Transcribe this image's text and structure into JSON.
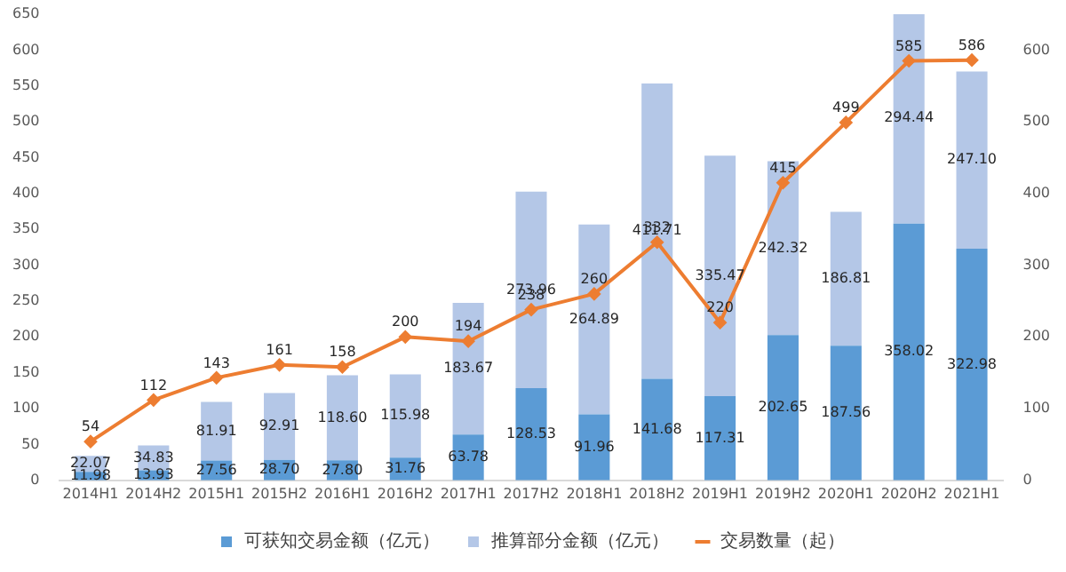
{
  "chart_data": {
    "type": "bar",
    "stacked": true,
    "categories": [
      "2014H1",
      "2014H2",
      "2015H1",
      "2015H2",
      "2016H1",
      "2016H2",
      "2017H1",
      "2017H2",
      "2018H1",
      "2018H2",
      "2019H1",
      "2019H2",
      "2020H1",
      "2020H2",
      "2021H1"
    ],
    "series": [
      {
        "name": "可获知交易金额（亿元）",
        "color": "#5b9bd5",
        "values": [
          11.98,
          13.93,
          27.56,
          28.7,
          27.8,
          31.76,
          63.78,
          128.53,
          91.96,
          141.68,
          117.31,
          202.65,
          187.56,
          358.02,
          322.98
        ],
        "value_labels": [
          "11.98",
          "13.93",
          "27.56",
          "28.70",
          "27.80",
          "31.76",
          "63.78",
          "128.53",
          "91.96",
          "141.68",
          "117.31",
          "202.65",
          "187.56",
          "358.02",
          "322.98"
        ]
      },
      {
        "name": "推算部分金额（亿元）",
        "color": "#b4c7e7",
        "values": [
          22.07,
          34.83,
          81.91,
          92.91,
          118.6,
          115.98,
          183.67,
          273.96,
          264.89,
          411.71,
          335.47,
          242.32,
          186.81,
          294.44,
          247.1
        ],
        "value_labels": [
          "22.07",
          "34.83",
          "81.91",
          "92.91",
          "118.60",
          "115.98",
          "183.67",
          "273.96",
          "264.89",
          "411.71",
          "335.47",
          "242.32",
          "186.81",
          "294.44",
          "247.10"
        ]
      },
      {
        "name": "交易数量（起）",
        "type": "line",
        "axis": "y2",
        "color": "#ed7d31",
        "values": [
          54,
          112,
          143,
          161,
          158,
          200,
          194,
          238,
          260,
          332,
          220,
          415,
          499,
          585,
          586
        ],
        "value_labels": [
          "54",
          "112",
          "143",
          "161",
          "158",
          "200",
          "194",
          "238",
          "260",
          "332",
          "220",
          "415",
          "499",
          "585",
          "586"
        ]
      }
    ],
    "ylim": [
      0,
      650
    ],
    "yticks": [
      0,
      50,
      100,
      150,
      200,
      250,
      300,
      350,
      400,
      450,
      500,
      550,
      600,
      650
    ],
    "y2lim": [
      0,
      650
    ],
    "y2ticks": [
      0,
      100,
      200,
      300,
      400,
      500,
      600
    ],
    "grid": false,
    "legend": "bottom",
    "marker": "diamond"
  }
}
